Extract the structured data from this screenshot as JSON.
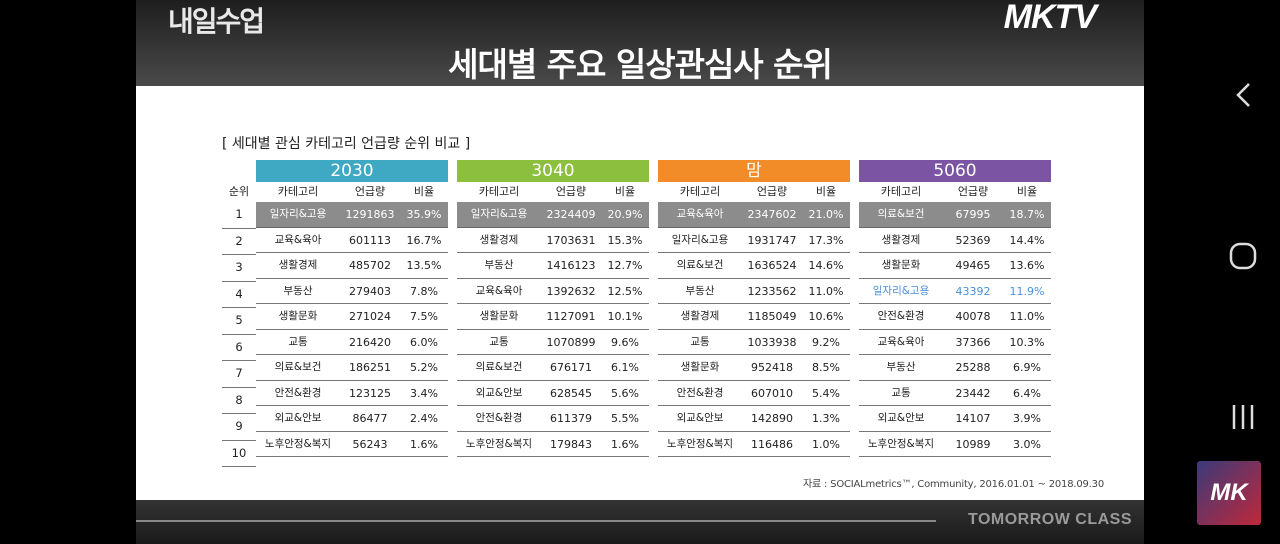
{
  "header": {
    "brand_left": "내일수업",
    "brand_right": "MKTV",
    "title": "세대별 주요 일상관심사 순위"
  },
  "slide": {
    "subtitle": "[ 세대별 관심 카테고리 언급량 순위 비교 ]",
    "rank_header": "순위",
    "ranks": [
      "1",
      "2",
      "3",
      "4",
      "5",
      "6",
      "7",
      "8",
      "9",
      "10"
    ],
    "column_headers": {
      "category": "카테고리",
      "mentions": "언급량",
      "ratio": "비율"
    },
    "source": "자료 : SOCIALmetrics™, Community, 2016.01.01 ~ 2018.09.30"
  },
  "footer": {
    "text": "TOMORROW CLASS"
  },
  "panels": [
    {
      "name": "2030",
      "color": "#3fa9c4",
      "rows": [
        [
          "일자리&고용",
          "1291863",
          "35.9%"
        ],
        [
          "교육&육아",
          "601113",
          "16.7%"
        ],
        [
          "생활경제",
          "485702",
          "13.5%"
        ],
        [
          "부동산",
          "279403",
          "7.8%"
        ],
        [
          "생활문화",
          "271024",
          "7.5%"
        ],
        [
          "교통",
          "216420",
          "6.0%"
        ],
        [
          "의료&보건",
          "186251",
          "5.2%"
        ],
        [
          "안전&환경",
          "123125",
          "3.4%"
        ],
        [
          "외교&안보",
          "86477",
          "2.4%"
        ],
        [
          "노후안정&복지",
          "56243",
          "1.6%"
        ]
      ]
    },
    {
      "name": "3040",
      "color": "#8dbf3e",
      "rows": [
        [
          "일자리&고용",
          "2324409",
          "20.9%"
        ],
        [
          "생활경제",
          "1703631",
          "15.3%"
        ],
        [
          "부동산",
          "1416123",
          "12.7%"
        ],
        [
          "교육&육아",
          "1392632",
          "12.5%"
        ],
        [
          "생활문화",
          "1127091",
          "10.1%"
        ],
        [
          "교통",
          "1070899",
          "9.6%"
        ],
        [
          "의료&보건",
          "676171",
          "6.1%"
        ],
        [
          "외교&안보",
          "628545",
          "5.6%"
        ],
        [
          "안전&환경",
          "611379",
          "5.5%"
        ],
        [
          "노후안정&복지",
          "179843",
          "1.6%"
        ]
      ]
    },
    {
      "name": "맘",
      "color": "#f28c28",
      "rows": [
        [
          "교육&육아",
          "2347602",
          "21.0%"
        ],
        [
          "일자리&고용",
          "1931747",
          "17.3%"
        ],
        [
          "의료&보건",
          "1636524",
          "14.6%"
        ],
        [
          "부동산",
          "1233562",
          "11.0%"
        ],
        [
          "생활경제",
          "1185049",
          "10.6%"
        ],
        [
          "교통",
          "1033938",
          "9.2%"
        ],
        [
          "생활문화",
          "952418",
          "8.5%"
        ],
        [
          "안전&환경",
          "607010",
          "5.4%"
        ],
        [
          "외교&안보",
          "142890",
          "1.3%"
        ],
        [
          "노후안정&복지",
          "116486",
          "1.0%"
        ]
      ]
    },
    {
      "name": "5060",
      "color": "#7b55a3",
      "highlight_row": 3,
      "rows": [
        [
          "의료&보건",
          "67995",
          "18.7%"
        ],
        [
          "생활경제",
          "52369",
          "14.4%"
        ],
        [
          "생활문화",
          "49465",
          "13.6%"
        ],
        [
          "일자리&고용",
          "43392",
          "11.9%"
        ],
        [
          "안전&환경",
          "40078",
          "11.0%"
        ],
        [
          "교육&육아",
          "37366",
          "10.3%"
        ],
        [
          "부동산",
          "25288",
          "6.9%"
        ],
        [
          "교통",
          "23442",
          "6.4%"
        ],
        [
          "외교&안보",
          "14107",
          "3.9%"
        ],
        [
          "노후안정&복지",
          "10989",
          "3.0%"
        ]
      ]
    }
  ],
  "navbar": {
    "back_icon": "chevron-left-icon",
    "home_icon": "circle-home-icon",
    "recents_icon": "recents-bars-icon",
    "logo": "MK"
  }
}
